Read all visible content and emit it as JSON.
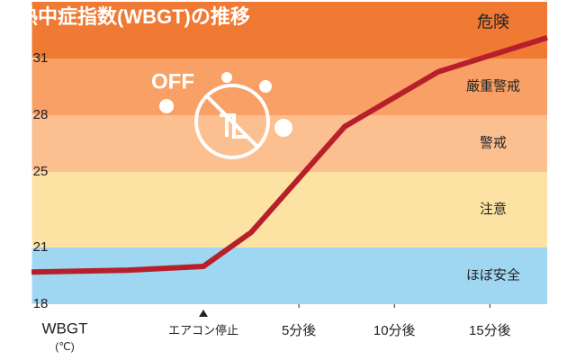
{
  "chart_data": {
    "type": "line",
    "title": "熱中症指数(WBGT)の推移",
    "x_label": "WBGT",
    "x_unit": "(℃)",
    "icon_text": "OFF",
    "bands": [
      {
        "label": "ほぼ安全",
        "from": 18,
        "to": 21,
        "color": "#9fd6f2"
      },
      {
        "label": "注意",
        "from": 21,
        "to": 25,
        "color": "#fde3a3"
      },
      {
        "label": "警戒",
        "from": 25,
        "to": 28,
        "color": "#fbbf90"
      },
      {
        "label": "厳重警戒",
        "from": 28,
        "to": 31,
        "color": "#f8a065"
      },
      {
        "label": "危険",
        "from": 31,
        "to": 34,
        "color": "#f07a33"
      }
    ],
    "xlim": [
      -9,
      18
    ],
    "xticks": [
      {
        "value": 0,
        "label": "エアコン停止"
      },
      {
        "value": 5,
        "label": "5分後"
      },
      {
        "value": 10,
        "label": "10分後"
      },
      {
        "value": 15,
        "label": "15分後"
      }
    ],
    "ylim": [
      18,
      34
    ],
    "yticks": [
      18,
      21,
      25,
      28,
      31
    ],
    "series": [
      {
        "name": "WBGT",
        "color": "#b71f2b",
        "x": [
          -9,
          -4,
          0,
          2.5,
          7.4,
          12.3,
          18
        ],
        "values": [
          19.7,
          19.8,
          20,
          21.8,
          27.4,
          30.3,
          32.1
        ]
      }
    ]
  }
}
